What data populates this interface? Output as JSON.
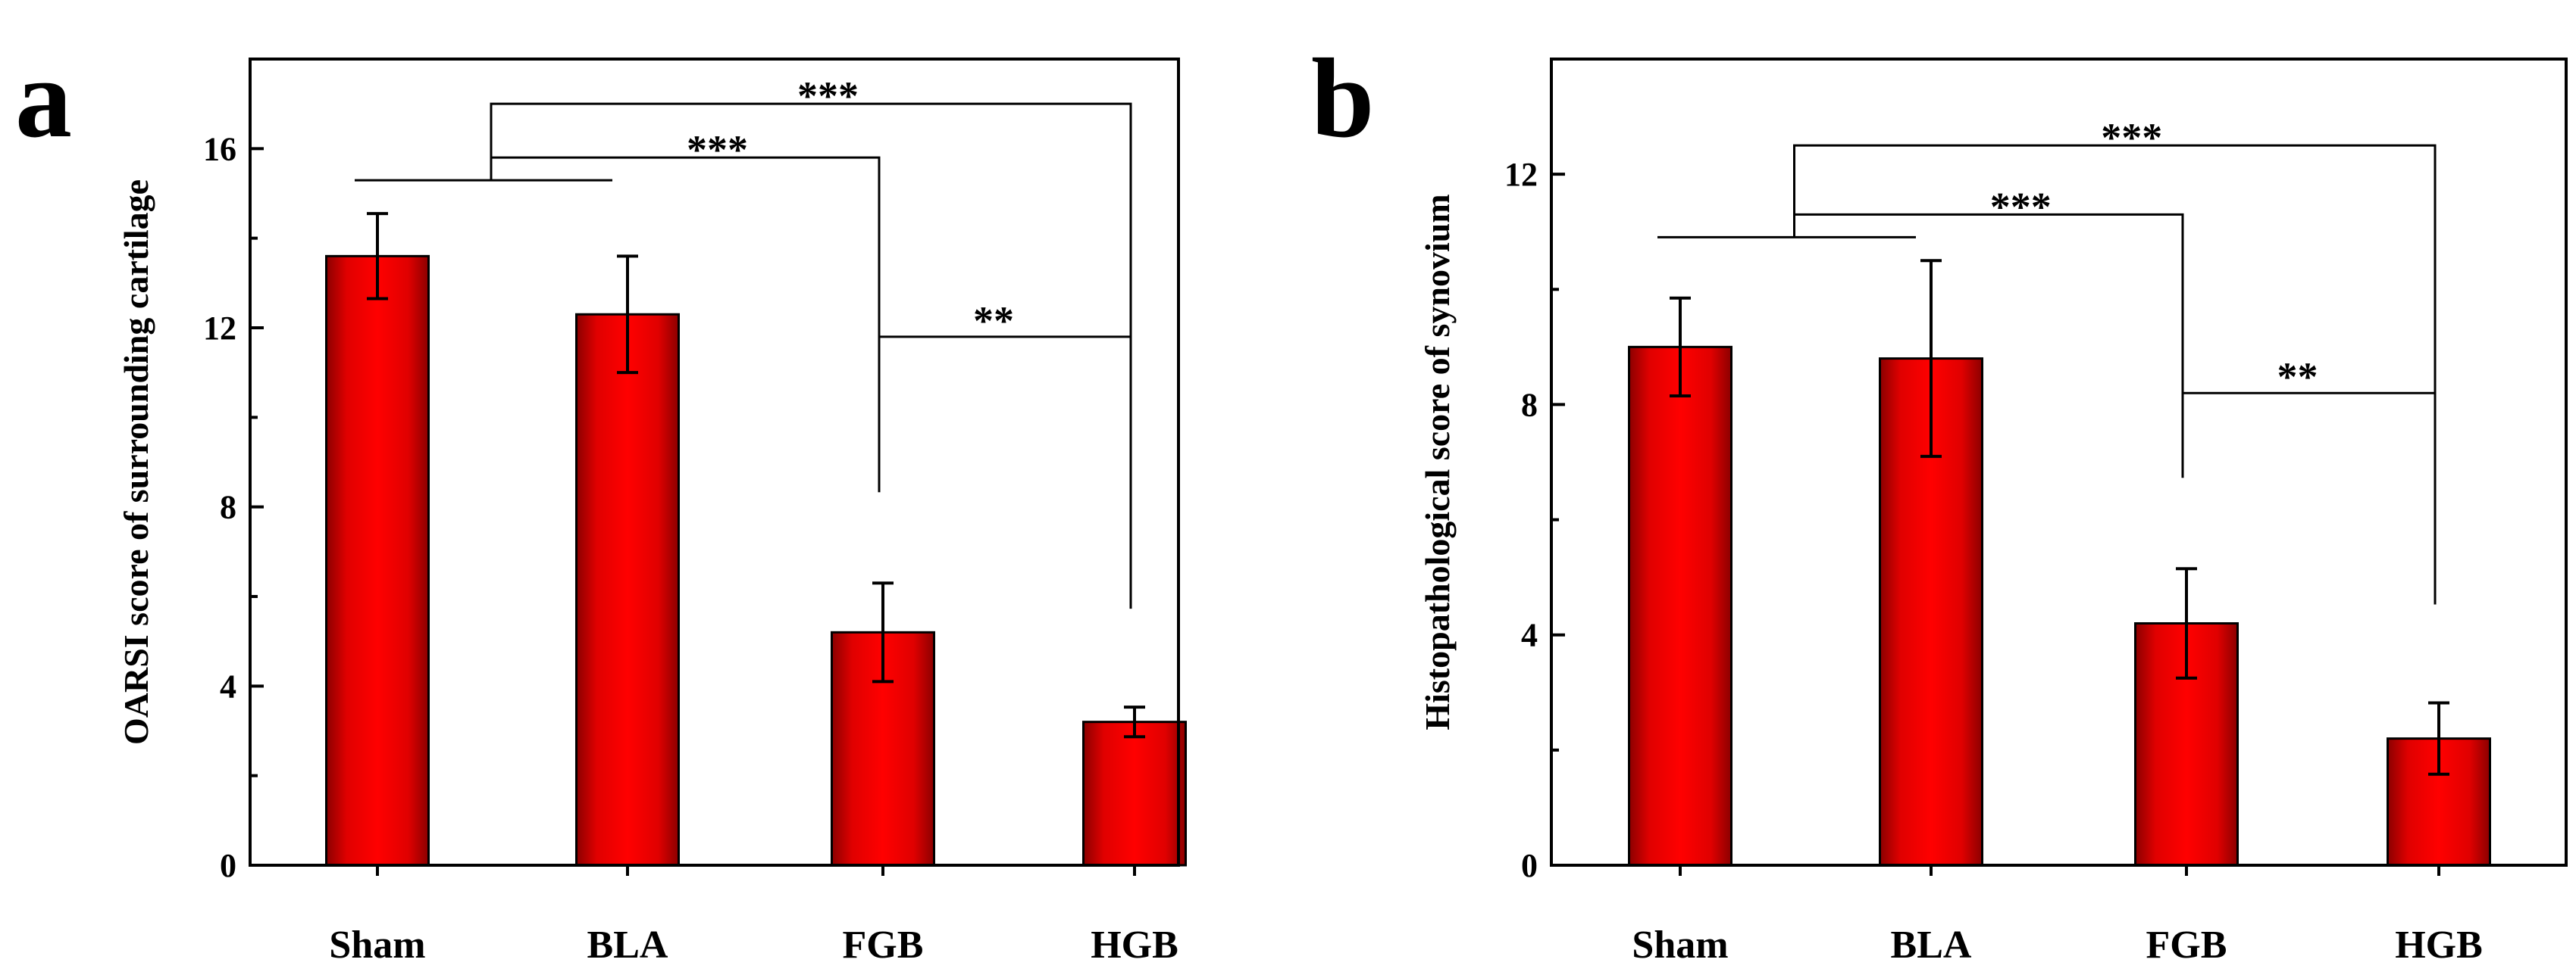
{
  "chart_data": [
    {
      "type": "bar",
      "panel_label": "a",
      "title": "",
      "xlabel": "",
      "ylabel": "OARSI score of surrounding cartilage",
      "categories": [
        "Sham",
        "BLA",
        "FGB",
        "HGB"
      ],
      "values": [
        13.6,
        12.3,
        5.2,
        3.2
      ],
      "errors": [
        0.95,
        1.3,
        1.1,
        0.33
      ],
      "ylim": [
        0,
        18
      ],
      "yticks": [
        "0",
        "4",
        "8",
        "12",
        "16"
      ],
      "bar_color": "#ff0000",
      "bar_dark": "#8b0000",
      "significance": [
        {
          "label": "***",
          "from": [
            0,
            1
          ],
          "to": 3,
          "y": 17.0
        },
        {
          "label": "***",
          "from": [
            0,
            1
          ],
          "to": 2,
          "y": 15.8
        },
        {
          "label": "**",
          "from": [
            2
          ],
          "to": 3,
          "y": 11.8
        }
      ]
    },
    {
      "type": "bar",
      "panel_label": "b",
      "title": "",
      "xlabel": "",
      "ylabel": "Histopathological score of synovium",
      "categories": [
        "Sham",
        "BLA",
        "FGB",
        "HGB"
      ],
      "values": [
        9.0,
        8.8,
        4.2,
        2.2
      ],
      "errors": [
        0.85,
        1.7,
        0.95,
        0.62
      ],
      "ylim": [
        0,
        14
      ],
      "yticks": [
        "0",
        "4",
        "8",
        "12"
      ],
      "bar_color": "#ff0000",
      "bar_dark": "#8b0000",
      "significance": [
        {
          "label": "***",
          "from": [
            0,
            1
          ],
          "to": 3,
          "y": 12.5
        },
        {
          "label": "***",
          "from": [
            0,
            1
          ],
          "to": 2,
          "y": 11.3
        },
        {
          "label": "**",
          "from": [
            2
          ],
          "to": 3,
          "y": 8.2
        }
      ]
    }
  ]
}
